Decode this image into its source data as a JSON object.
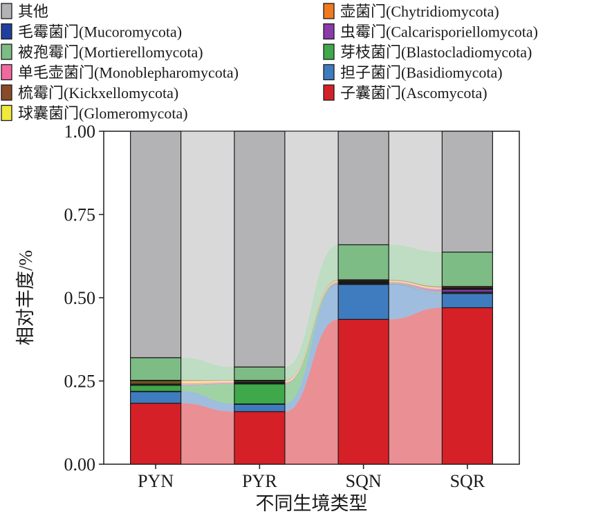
{
  "chart_data": {
    "type": "bar",
    "subtype": "stacked-alluvial",
    "categories": [
      "PYN",
      "PYR",
      "SQN",
      "SQR"
    ],
    "xlabel": "不同生境类型",
    "ylabel": "相对丰度/%",
    "ylim": [
      0,
      1
    ],
    "yticks": [
      "0.00",
      "0.25",
      "0.50",
      "0.75",
      "1.00"
    ],
    "ytick_values": [
      0,
      0.25,
      0.5,
      0.75,
      1.0
    ],
    "legend_position": "top",
    "series": [
      {
        "name": "子囊菌门(Ascomycota)",
        "color": "#d62027",
        "values": [
          0.183,
          0.158,
          0.435,
          0.47
        ]
      },
      {
        "name": "担子菌门(Basidiomycota)",
        "color": "#3f7bbf",
        "values": [
          0.035,
          0.022,
          0.105,
          0.043
        ]
      },
      {
        "name": "毛霉菌门(Mucoromycota)",
        "color": "#1f3f9f",
        "values": [
          0.001,
          0.001,
          0.002,
          0.001
        ]
      },
      {
        "name": "芽枝菌门(Blastocladiomycota)",
        "color": "#3fa84a",
        "values": [
          0.018,
          0.06,
          0.002,
          0.003
        ]
      },
      {
        "name": "虫霉门(Calcarisporiellomycota)",
        "color": "#8a3aaa",
        "values": [
          0.002,
          0.002,
          0.002,
          0.008
        ]
      },
      {
        "name": "单毛壶菌门(Monoblepharomycota)",
        "color": "#f06aa0",
        "values": [
          0.002,
          0.002,
          0.001,
          0.001
        ]
      },
      {
        "name": "壶菌门(Chytridiomycota)",
        "color": "#f07a1e",
        "values": [
          0.004,
          0.002,
          0.002,
          0.002
        ]
      },
      {
        "name": "球囊菌门(Glomeromycota)",
        "color": "#f0ea3a",
        "values": [
          0.004,
          0.003,
          0.002,
          0.002
        ]
      },
      {
        "name": "梳霉门(Kickxellomycota)",
        "color": "#8b4a2a",
        "values": [
          0.003,
          0.002,
          0.003,
          0.004
        ]
      },
      {
        "name": "被孢霉门(Mortierellomycota)",
        "color": "#7dbc85",
        "values": [
          0.068,
          0.04,
          0.105,
          0.103
        ]
      },
      {
        "name": "其他",
        "color": "#b3b3b5",
        "values": [
          0.68,
          0.708,
          0.341,
          0.363
        ]
      }
    ],
    "legend_order": [
      "其他",
      "毛霉菌门(Mucoromycota)",
      "被孢霉门(Mortierellomycota)",
      "单毛壶菌门(Monoblepharomycota)",
      "梳霉门(Kickxellomycota)",
      "球囊菌门(Glomeromycota)",
      "壶菌门(Chytridiomycota)",
      "虫霉门(Calcarisporiellomycota)",
      "芽枝菌门(Blastocladiomycota)",
      "担子菌门(Basidiomycota)",
      "子囊菌门(Ascomycota)"
    ]
  }
}
